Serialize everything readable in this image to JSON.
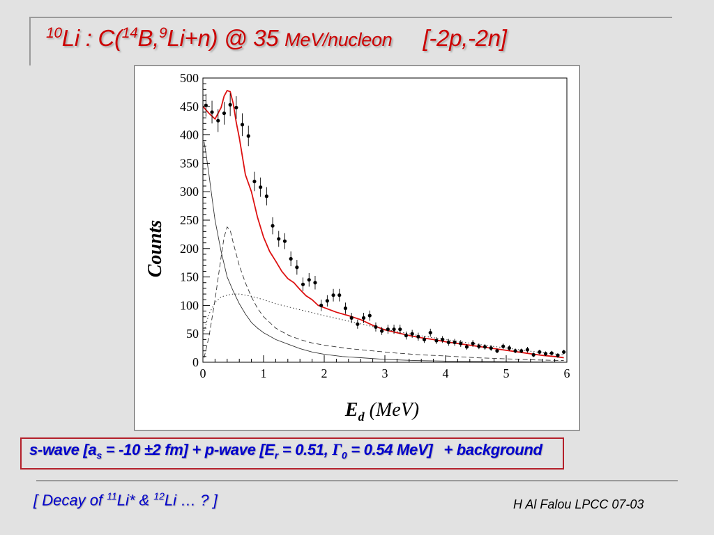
{
  "slide": {
    "title": {
      "iso_a": "10",
      "part_a": "Li :  C(",
      "iso_b": "14",
      "part_b": "B,",
      "iso_c": "9",
      "part_c": "Li+n) @ 35 ",
      "part_d": "MeV/nucleon",
      "tail": "[-2p,-2n]"
    },
    "fit": {
      "p1": "s-wave [a",
      "s_sub": "s",
      "p2": " = -10 ±2 fm] +  p-wave [E",
      "r_sub": "r",
      "p3": " = 0.51, ",
      "gamma": "Γ",
      "zero_sub": "0",
      "p4": " = 0.54 MeV]",
      "p5": "+ background"
    },
    "footer": {
      "p1": "[  Decay of ",
      "iso_a": "11",
      "p2": "Li* & ",
      "iso_b": "12",
      "p3": "Li … ?  ]",
      "author": "H Al Falou LPCC 07-03"
    }
  },
  "chart_data": {
    "type": "scatter",
    "ylabel": "Counts",
    "xlabel_main": "E",
    "xlabel_sub": "d",
    "xlabel_unit": " (MeV)",
    "xlim": [
      0,
      6
    ],
    "ylim": [
      0,
      500
    ],
    "xticks": [
      "0",
      "1",
      "2",
      "3",
      "4",
      "5",
      "6"
    ],
    "yticks": [
      "0",
      "50",
      "100",
      "150",
      "200",
      "250",
      "300",
      "350",
      "400",
      "450",
      "500"
    ],
    "colors": {
      "fit": "#dd1111",
      "points": "#000000",
      "components": "#333333"
    },
    "points": {
      "name": "data",
      "x": [
        0.05,
        0.15,
        0.25,
        0.35,
        0.45,
        0.55,
        0.65,
        0.75,
        0.85,
        0.95,
        1.05,
        1.15,
        1.25,
        1.35,
        1.45,
        1.55,
        1.65,
        1.75,
        1.85,
        1.95,
        2.05,
        2.15,
        2.25,
        2.35,
        2.45,
        2.55,
        2.65,
        2.75,
        2.85,
        2.95,
        3.05,
        3.15,
        3.25,
        3.35,
        3.45,
        3.55,
        3.65,
        3.75,
        3.85,
        3.95,
        4.05,
        4.15,
        4.25,
        4.35,
        4.45,
        4.55,
        4.65,
        4.75,
        4.85,
        4.95,
        5.05,
        5.15,
        5.25,
        5.35,
        5.45,
        5.55,
        5.65,
        5.75,
        5.85,
        5.95
      ],
      "y": [
        452,
        440,
        425,
        438,
        453,
        448,
        418,
        398,
        318,
        308,
        292,
        240,
        217,
        213,
        182,
        167,
        137,
        145,
        140,
        100,
        108,
        118,
        118,
        95,
        78,
        67,
        78,
        82,
        62,
        55,
        58,
        58,
        58,
        47,
        50,
        45,
        40,
        52,
        38,
        40,
        35,
        35,
        33,
        27,
        33,
        28,
        27,
        25,
        20,
        28,
        25,
        20,
        20,
        22,
        13,
        18,
        15,
        16,
        12,
        18
      ],
      "err": [
        20,
        20,
        20,
        20,
        20,
        20,
        20,
        18,
        17,
        17,
        16,
        15,
        14,
        14,
        13,
        13,
        12,
        12,
        12,
        10,
        10,
        11,
        11,
        10,
        9,
        8,
        9,
        9,
        8,
        7,
        8,
        8,
        8,
        7,
        7,
        7,
        6,
        7,
        6,
        6,
        6,
        6,
        6,
        5,
        6,
        5,
        5,
        5,
        4,
        5,
        5,
        4,
        4,
        5,
        4,
        4,
        4,
        4,
        4,
        4
      ]
    },
    "series": [
      {
        "name": "total fit",
        "style": "solid",
        "x": [
          0,
          0.1,
          0.2,
          0.3,
          0.35,
          0.4,
          0.45,
          0.5,
          0.55,
          0.6,
          0.7,
          0.8,
          0.9,
          1.0,
          1.1,
          1.2,
          1.3,
          1.4,
          1.5,
          1.6,
          1.7,
          1.8,
          1.9,
          2.0,
          2.2,
          2.4,
          2.6,
          2.8,
          3.0,
          3.2,
          3.4,
          3.6,
          3.8,
          4.0,
          4.2,
          4.4,
          4.6,
          4.8,
          5.0,
          5.2,
          5.4,
          5.6,
          5.8,
          5.95
        ],
        "y": [
          450,
          438,
          428,
          448,
          468,
          478,
          476,
          455,
          422,
          395,
          330,
          300,
          255,
          220,
          195,
          178,
          160,
          147,
          140,
          128,
          117,
          110,
          100,
          96,
          88,
          82,
          75,
          65,
          57,
          52,
          47,
          43,
          40,
          36,
          33,
          30,
          27,
          24,
          21,
          18,
          15,
          12,
          10,
          8
        ]
      },
      {
        "name": "s-wave",
        "style": "solid-thin",
        "x": [
          0.02,
          0.05,
          0.1,
          0.15,
          0.2,
          0.3,
          0.4,
          0.5,
          0.6,
          0.7,
          0.8,
          0.9,
          1.0,
          1.2,
          1.4,
          1.6,
          1.8,
          2.0,
          2.3,
          2.6,
          3.0,
          3.5,
          4.0,
          4.5,
          5.0,
          5.5,
          5.95
        ],
        "y": [
          388,
          368,
          330,
          290,
          250,
          195,
          150,
          125,
          103,
          85,
          70,
          60,
          52,
          40,
          32,
          24,
          18,
          14,
          10,
          8,
          5,
          3,
          2,
          1.5,
          1,
          0.5,
          0.3
        ]
      },
      {
        "name": "p-wave",
        "style": "dashed",
        "x": [
          0.02,
          0.1,
          0.2,
          0.3,
          0.35,
          0.4,
          0.45,
          0.5,
          0.6,
          0.7,
          0.8,
          0.9,
          1.0,
          1.2,
          1.4,
          1.6,
          1.8,
          2.0,
          2.4,
          2.8,
          3.2,
          3.6,
          4.0,
          4.5,
          5.0,
          5.5,
          5.95
        ],
        "y": [
          8,
          45,
          110,
          185,
          220,
          238,
          232,
          210,
          170,
          140,
          115,
          95,
          80,
          60,
          48,
          40,
          34,
          30,
          24,
          20,
          16,
          13,
          11,
          8,
          6,
          4,
          3
        ]
      },
      {
        "name": "background",
        "style": "dotted",
        "x": [
          0.02,
          0.1,
          0.2,
          0.3,
          0.4,
          0.5,
          0.6,
          0.7,
          0.8,
          1.0,
          1.2,
          1.5,
          2.0,
          2.5,
          3.0,
          3.5,
          4.0,
          4.5,
          5.0,
          5.5,
          5.95
        ],
        "y": [
          55,
          85,
          105,
          115,
          118,
          120,
          120,
          118,
          116,
          110,
          103,
          95,
          82,
          70,
          58,
          48,
          40,
          32,
          25,
          18,
          13
        ]
      }
    ]
  }
}
